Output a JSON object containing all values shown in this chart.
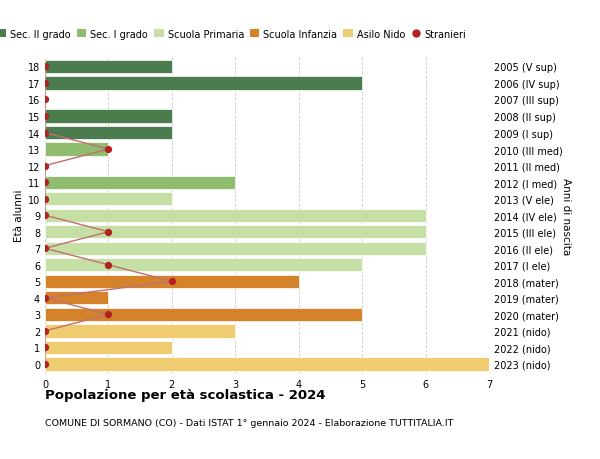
{
  "ages": [
    18,
    17,
    16,
    15,
    14,
    13,
    12,
    11,
    10,
    9,
    8,
    7,
    6,
    5,
    4,
    3,
    2,
    1,
    0
  ],
  "years": [
    "2005 (V sup)",
    "2006 (IV sup)",
    "2007 (III sup)",
    "2008 (II sup)",
    "2009 (I sup)",
    "2010 (III med)",
    "2011 (II med)",
    "2012 (I med)",
    "2013 (V ele)",
    "2014 (IV ele)",
    "2015 (III ele)",
    "2016 (II ele)",
    "2017 (I ele)",
    "2018 (mater)",
    "2019 (mater)",
    "2020 (mater)",
    "2021 (nido)",
    "2022 (nido)",
    "2023 (nido)"
  ],
  "bar_values": [
    2,
    5,
    0,
    2,
    2,
    1,
    0,
    3,
    2,
    6,
    6,
    6,
    5,
    4,
    1,
    5,
    3,
    2,
    7
  ],
  "bar_colors": [
    "#4a7c4e",
    "#4a7c4e",
    "#4a7c4e",
    "#4a7c4e",
    "#4a7c4e",
    "#8fbc6e",
    "#8fbc6e",
    "#8fbc6e",
    "#c5dfa5",
    "#c5dfa5",
    "#c5dfa5",
    "#c5dfa5",
    "#c5dfa5",
    "#d4832a",
    "#d4832a",
    "#d4832a",
    "#f0cc70",
    "#f0cc70",
    "#f0cc70"
  ],
  "stranieri_values": [
    0,
    0,
    0,
    0,
    0,
    1,
    0,
    0,
    0,
    0,
    1,
    0,
    1,
    2,
    0,
    1,
    0,
    0,
    0
  ],
  "stranieri_color": "#b22222",
  "stranieri_line_color": "#c07070",
  "title": "Popolazione per età scolastica - 2024",
  "subtitle": "COMUNE DI SORMANO (CO) - Dati ISTAT 1° gennaio 2024 - Elaborazione TUTTITALIA.IT",
  "ylabel": "Età alunni",
  "ylabel2": "Anni di nascita",
  "xlim": [
    0,
    7
  ],
  "bg_color": "#ffffff",
  "grid_color": "#cccccc",
  "legend_items": [
    {
      "label": "Sec. II grado",
      "color": "#4a7c4e"
    },
    {
      "label": "Sec. I grado",
      "color": "#8fbc6e"
    },
    {
      "label": "Scuola Primaria",
      "color": "#c5dfa5"
    },
    {
      "label": "Scuola Infanzia",
      "color": "#d4832a"
    },
    {
      "label": "Asilo Nido",
      "color": "#f0cc70"
    },
    {
      "label": "Stranieri",
      "color": "#b22222"
    }
  ]
}
